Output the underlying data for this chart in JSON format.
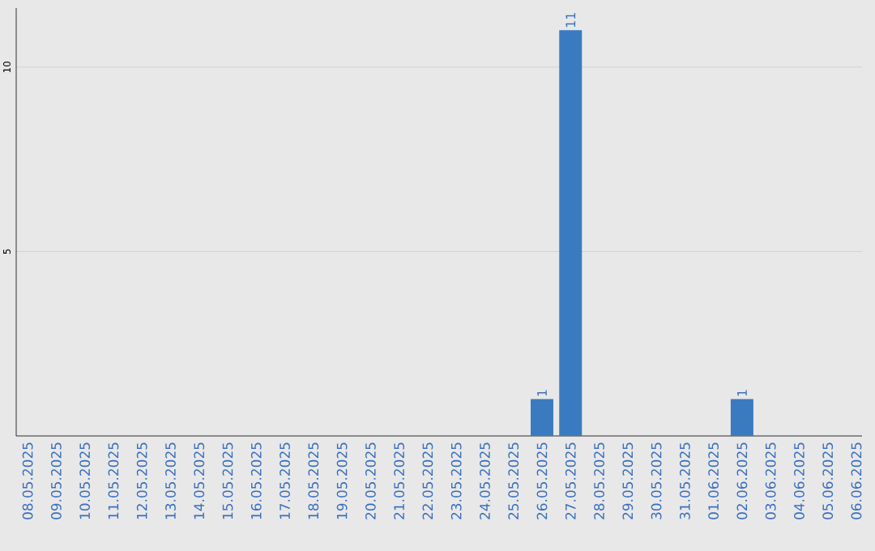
{
  "chart_data": {
    "type": "bar",
    "categories": [
      "08.05.2025",
      "09.05.2025",
      "10.05.2025",
      "11.05.2025",
      "12.05.2025",
      "13.05.2025",
      "14.05.2025",
      "15.05.2025",
      "16.05.2025",
      "17.05.2025",
      "18.05.2025",
      "19.05.2025",
      "20.05.2025",
      "21.05.2025",
      "22.05.2025",
      "23.05.2025",
      "24.05.2025",
      "25.05.2025",
      "26.05.2025",
      "27.05.2025",
      "28.05.2025",
      "29.05.2025",
      "30.05.2025",
      "31.05.2025",
      "01.06.2025",
      "02.06.2025",
      "03.06.2025",
      "04.06.2025",
      "05.06.2025",
      "06.06.2025"
    ],
    "values": [
      0,
      0,
      0,
      0,
      0,
      0,
      0,
      0,
      0,
      0,
      0,
      0,
      0,
      0,
      0,
      0,
      0,
      0,
      1,
      11,
      0,
      0,
      0,
      0,
      0,
      1,
      0,
      0,
      0,
      0
    ],
    "value_labels": [
      null,
      null,
      null,
      null,
      null,
      null,
      null,
      null,
      null,
      null,
      null,
      null,
      null,
      null,
      null,
      null,
      null,
      null,
      "1",
      "11",
      null,
      null,
      null,
      null,
      null,
      "1",
      null,
      null,
      null,
      null
    ],
    "color": "#3a7bbf",
    "ylim": [
      0,
      11.6
    ],
    "yticks": [
      5,
      10
    ],
    "grid": "y"
  }
}
